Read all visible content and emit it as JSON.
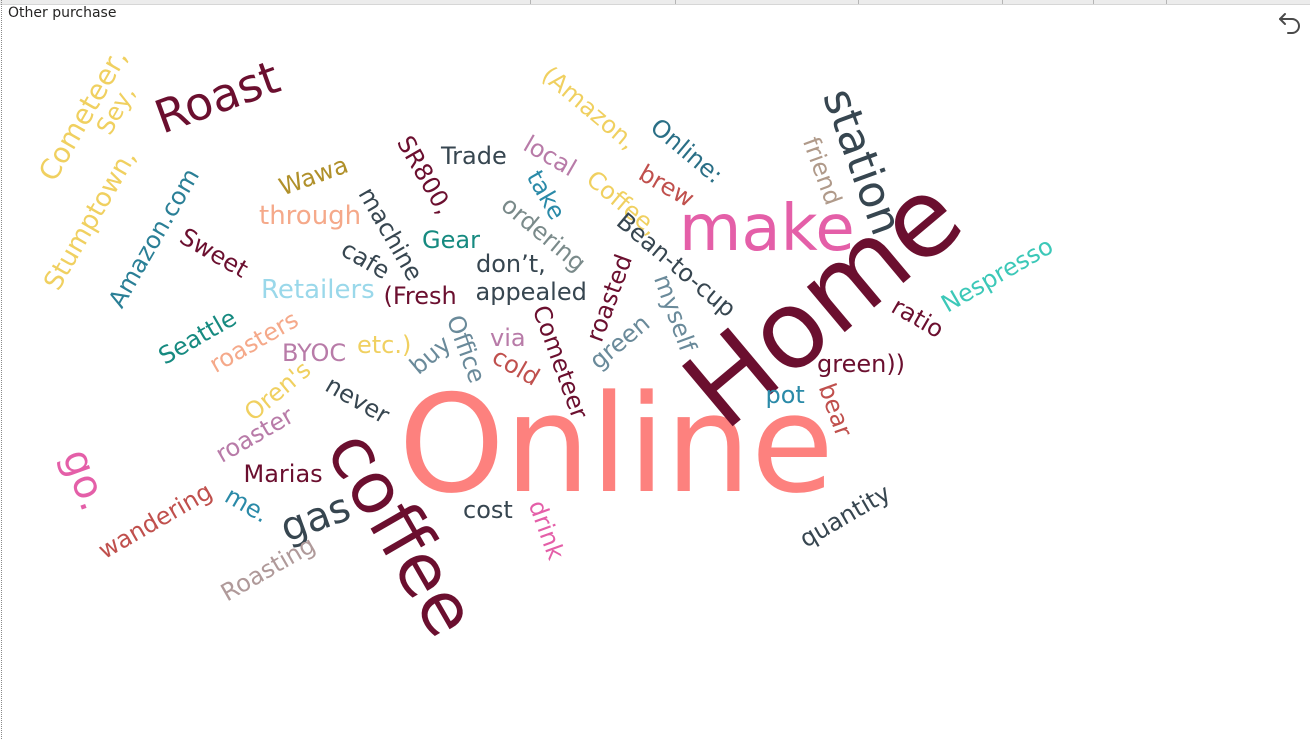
{
  "visual": {
    "title": "Other purchase",
    "undo_icon": "undo-icon"
  },
  "colors": {
    "maroon": "#6b0f2f",
    "salmon": "#fd817e",
    "pink": "#e45fa8",
    "teal": "#168a80",
    "slate": "#374650",
    "yellow": "#f2c80f"
  },
  "words": [
    {
      "text": "Online",
      "color": "#fd817e"
    },
    {
      "text": "Home",
      "color": "#6b0f2f"
    },
    {
      "text": "coffee",
      "color": "#6b0f2f"
    },
    {
      "text": "make",
      "color": "#e45fa8"
    },
    {
      "text": "station",
      "color": "#374650"
    },
    {
      "text": "Roast",
      "color": "#6b0f2f"
    },
    {
      "text": "gas",
      "color": "#374650"
    },
    {
      "text": "go.",
      "color": "#e45fa8"
    },
    {
      "text": "Cometeer,",
      "color": "#f0d060"
    },
    {
      "text": "Sey,",
      "color": "#f0d060"
    },
    {
      "text": "Stumptown,",
      "color": "#f0d060"
    },
    {
      "text": "Amazon.com",
      "color": "#2a7f96"
    },
    {
      "text": "Sweet",
      "color": "#6b0f2f"
    },
    {
      "text": "Wawa",
      "color": "#b0902a"
    },
    {
      "text": "through",
      "color": "#f5a98a"
    },
    {
      "text": "machine",
      "color": "#374650"
    },
    {
      "text": "cafe",
      "color": "#374650"
    },
    {
      "text": "SR800,",
      "color": "#6b0f2f"
    },
    {
      "text": "Trade",
      "color": "#374650"
    },
    {
      "text": "local",
      "color": "#b87ba8"
    },
    {
      "text": "take",
      "color": "#2a8aa8"
    },
    {
      "text": "(Amazon,",
      "color": "#f0d060"
    },
    {
      "text": "Online:",
      "color": "#2a6f86"
    },
    {
      "text": "brew",
      "color": "#c0504d"
    },
    {
      "text": "Coffee,",
      "color": "#f0d060"
    },
    {
      "text": "friend",
      "color": "#b09a8a"
    },
    {
      "text": "Gear",
      "color": "#168a80"
    },
    {
      "text": "ordering",
      "color": "#7a8a8a"
    },
    {
      "text": "Retailers",
      "color": "#9ad8ea"
    },
    {
      "text": "(Fresh",
      "color": "#6b0f2f"
    },
    {
      "text": "don’t,",
      "color": "#374650"
    },
    {
      "text": "appealed",
      "color": "#374650"
    },
    {
      "text": "Bean-to-cup",
      "color": "#374650"
    },
    {
      "text": "roasted",
      "color": "#6b0f2f"
    },
    {
      "text": "myself",
      "color": "#6a8a9a"
    },
    {
      "text": "Nespresso",
      "color": "#3cc8b8"
    },
    {
      "text": "ratio",
      "color": "#6b0f2f"
    },
    {
      "text": "Seattle",
      "color": "#168a80"
    },
    {
      "text": "roasters",
      "color": "#f5a98a"
    },
    {
      "text": "BYOC",
      "color": "#b87ba8"
    },
    {
      "text": "etc.)",
      "color": "#f0d060"
    },
    {
      "text": "Office",
      "color": "#6a8a9a"
    },
    {
      "text": "via",
      "color": "#b87ba8"
    },
    {
      "text": "Cometeer",
      "color": "#6b0f2f"
    },
    {
      "text": "green",
      "color": "#6a8a9a"
    },
    {
      "text": "buy",
      "color": "#6a8a9a"
    },
    {
      "text": "cold",
      "color": "#c0504d"
    },
    {
      "text": "green))",
      "color": "#6b0f2f"
    },
    {
      "text": "Oren's",
      "color": "#f0d060"
    },
    {
      "text": "never",
      "color": "#374650"
    },
    {
      "text": "pot",
      "color": "#2a8aa8"
    },
    {
      "text": "bear",
      "color": "#c0504d"
    },
    {
      "text": "roaster",
      "color": "#b87ba8"
    },
    {
      "text": "Marias",
      "color": "#6b0f2f"
    },
    {
      "text": "me.",
      "color": "#2a8aa8"
    },
    {
      "text": "wandering",
      "color": "#c0504d"
    },
    {
      "text": "cost",
      "color": "#374650"
    },
    {
      "text": "drink",
      "color": "#e45fa8"
    },
    {
      "text": "quantity",
      "color": "#374650"
    },
    {
      "text": "Roasting",
      "color": "#b09a9a"
    }
  ]
}
